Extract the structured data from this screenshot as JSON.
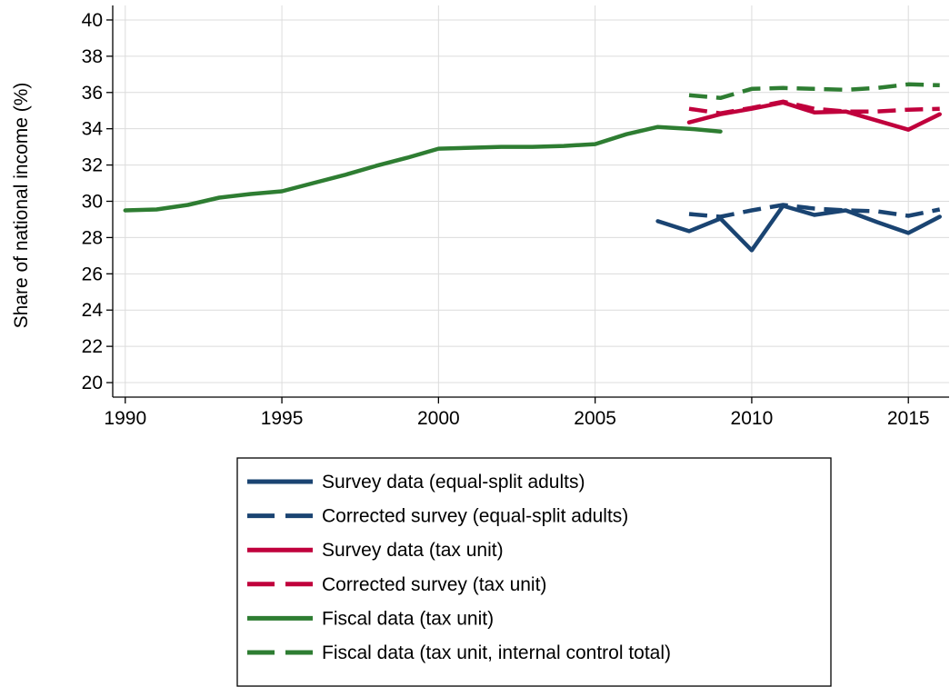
{
  "chart_data": {
    "type": "line",
    "title": "",
    "xlabel": "",
    "ylabel": "Share of national income (%)",
    "xlim": [
      1989.6,
      2016.3
    ],
    "ylim": [
      19.2,
      40.8
    ],
    "xticks": [
      1990,
      1995,
      2000,
      2005,
      2010,
      2015
    ],
    "yticks": [
      20,
      22,
      24,
      26,
      28,
      30,
      32,
      34,
      36,
      38,
      40
    ],
    "grid": true,
    "legend_position": "bottom",
    "series": [
      {
        "name": "Survey data (equal-split adults)",
        "color": "#1a4472",
        "dash": "solid",
        "x": [
          2007,
          2008,
          2009,
          2010,
          2011,
          2012,
          2013,
          2014,
          2015,
          2016
        ],
        "y": [
          28.9,
          28.35,
          29.05,
          27.3,
          29.75,
          29.25,
          29.5,
          28.85,
          28.25,
          29.15
        ]
      },
      {
        "name": "Corrected survey (equal-split adults)",
        "color": "#1a4472",
        "dash": "dashed",
        "x": [
          2008,
          2009,
          2010,
          2011,
          2012,
          2013,
          2014,
          2015,
          2016
        ],
        "y": [
          29.3,
          29.15,
          29.5,
          29.8,
          29.6,
          29.5,
          29.45,
          29.2,
          29.55
        ]
      },
      {
        "name": "Survey data (tax unit)",
        "color": "#c0003c",
        "dash": "solid",
        "x": [
          2008,
          2009,
          2010,
          2011,
          2012,
          2013,
          2014,
          2015,
          2016
        ],
        "y": [
          34.35,
          34.8,
          35.1,
          35.45,
          34.9,
          34.95,
          34.45,
          33.95,
          34.8
        ]
      },
      {
        "name": "Corrected survey (tax unit)",
        "color": "#c0003c",
        "dash": "dashed",
        "x": [
          2008,
          2009,
          2010,
          2011,
          2012,
          2013,
          2014,
          2015,
          2016
        ],
        "y": [
          35.1,
          34.85,
          35.15,
          35.5,
          35.1,
          34.95,
          34.95,
          35.05,
          35.1
        ]
      },
      {
        "name": "Fiscal data (tax unit)",
        "color": "#2e7d32",
        "dash": "solid",
        "x": [
          1990,
          1991,
          1992,
          1993,
          1994,
          1995,
          1996,
          1997,
          1998,
          1999,
          2000,
          2001,
          2002,
          2003,
          2004,
          2005,
          2006,
          2007,
          2008,
          2009
        ],
        "y": [
          29.5,
          29.55,
          29.8,
          30.2,
          30.4,
          30.55,
          31.0,
          31.45,
          31.95,
          32.4,
          32.9,
          32.95,
          33.0,
          33.0,
          33.05,
          33.15,
          33.7,
          34.1,
          34.0,
          33.85
        ]
      },
      {
        "name": "Fiscal data (tax unit, internal control total)",
        "color": "#2e7d32",
        "dash": "dashed",
        "x": [
          2008,
          2009,
          2010,
          2011,
          2012,
          2013,
          2014,
          2015,
          2016
        ],
        "y": [
          35.85,
          35.7,
          36.2,
          36.25,
          36.2,
          36.15,
          36.25,
          36.45,
          36.4
        ]
      }
    ]
  }
}
